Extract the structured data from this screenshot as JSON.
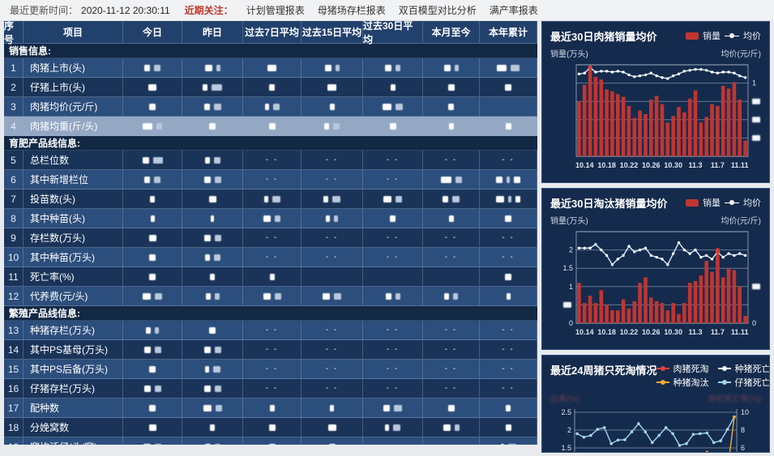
{
  "topbar": {
    "update_label": "最近更新时间：",
    "update_time": "2020-11-12 20:30:11",
    "focus_label": "近期关注：",
    "links": [
      "计划管理报表",
      "母猪场存栏报表",
      "双百模型对比分析",
      "满产率报表"
    ]
  },
  "table": {
    "headers": [
      "序号",
      "项目",
      "今日",
      "昨日",
      "过去7日平均",
      "过去15日平均",
      "过去30日平均",
      "本月至今",
      "本年累计"
    ],
    "redaction_note": "all numeric cell values are blurred/redacted in the screenshot",
    "rows": [
      {
        "section": "销售信息:"
      },
      {
        "n": 1,
        "label": "肉猪上市(头)",
        "shade": "lt",
        "cells": [
          [
            7,
            8
          ],
          [
            9,
            5
          ],
          [
            11
          ],
          [
            8,
            5
          ],
          [
            8,
            6
          ],
          [
            8,
            5
          ],
          [
            12,
            11
          ]
        ]
      },
      {
        "n": 2,
        "label": "仔猪上市(头)",
        "shade": "dk",
        "cells": [
          [
            10
          ],
          [
            6,
            13
          ],
          [
            7
          ],
          [
            11
          ],
          [
            6
          ],
          [
            8
          ],
          [
            8
          ]
        ]
      },
      {
        "n": 3,
        "label": "肉猪均价(元/斤)",
        "shade": "lt",
        "cells": [
          [
            8
          ],
          [
            7,
            9
          ],
          [
            5,
            8
          ],
          [
            6
          ],
          [
            11,
            9
          ],
          [
            7
          ],
          []
        ]
      },
      {
        "n": 4,
        "label": "肉猪均重(斤/头)",
        "shade": "sel",
        "selected": true,
        "cells": [
          [
            12,
            7
          ],
          [
            8
          ],
          [
            8
          ],
          [
            6,
            8
          ],
          [
            8
          ],
          [
            6
          ],
          [
            7
          ]
        ]
      },
      {
        "section": "育肥产品线信息:"
      },
      {
        "n": 5,
        "label": "总栏位数",
        "shade": "dk",
        "cells": [
          [
            8,
            12
          ],
          [
            6,
            8
          ],
          "-",
          "-",
          "-",
          "-",
          "-"
        ]
      },
      {
        "n": 6,
        "label": "其中新增栏位",
        "shade": "lt",
        "cells": [
          [
            7,
            8
          ],
          [
            8,
            8
          ],
          "-",
          "-",
          "-",
          [
            13,
            8
          ],
          [
            8,
            4,
            8
          ]
        ]
      },
      {
        "n": 7,
        "label": "投苗数(头)",
        "shade": "dk",
        "cells": [
          [
            6
          ],
          [
            9
          ],
          [
            5,
            10
          ],
          [
            6,
            10
          ],
          [
            10,
            8
          ],
          [
            7,
            9
          ],
          [
            10,
            4,
            6
          ]
        ]
      },
      {
        "n": 8,
        "label": "其中种苗(头)",
        "shade": "lt",
        "cells": [
          [
            5
          ],
          [
            4
          ],
          [
            9,
            7
          ],
          [
            5,
            5
          ],
          [
            7
          ],
          [
            6
          ],
          [
            8
          ]
        ]
      },
      {
        "n": 9,
        "label": "存栏数(万头)",
        "shade": "dk",
        "cells": [
          [
            9
          ],
          [
            8,
            8
          ],
          "-",
          "-",
          "-",
          "-",
          "-"
        ]
      },
      {
        "n": 10,
        "label": "其中种苗(万头)",
        "shade": "lt",
        "cells": [
          [
            8
          ],
          [
            6,
            8
          ],
          "-",
          "-",
          "-",
          "-",
          "-"
        ]
      },
      {
        "n": 11,
        "label": "死亡率(%)",
        "shade": "dk",
        "cells": [
          [
            8
          ],
          [
            6
          ],
          [
            6
          ],
          [],
          [],
          [],
          [
            8
          ]
        ]
      },
      {
        "n": 12,
        "label": "代养费(元/头)",
        "shade": "lt",
        "cells": [
          [
            10,
            9
          ],
          [
            6,
            6
          ],
          [
            9,
            8
          ],
          [
            9,
            9
          ],
          [
            7,
            6
          ],
          [
            6,
            6
          ],
          [
            5
          ]
        ]
      },
      {
        "section": "繁殖产品线信息:"
      },
      {
        "n": 13,
        "label": "种猪存栏(万头)",
        "shade": "lt",
        "cells": [
          [
            6,
            5
          ],
          [
            8
          ],
          "-",
          "-",
          "-",
          "-",
          "-"
        ]
      },
      {
        "n": 14,
        "label": "其中PS基母(万头)",
        "shade": "dk",
        "cells": [
          [
            8,
            8
          ],
          [
            8,
            8
          ],
          "-",
          "-",
          "-",
          "-",
          "-"
        ]
      },
      {
        "n": 15,
        "label": "其中PS后备(万头)",
        "shade": "lt",
        "cells": [
          [
            8
          ],
          [
            5,
            9
          ],
          "-",
          "-",
          "-",
          "-",
          "-"
        ]
      },
      {
        "n": 16,
        "label": "仔猪存栏(万头)",
        "shade": "dk",
        "cells": [
          [
            8,
            8
          ],
          [
            8,
            8
          ],
          "-",
          "-",
          "-",
          "-",
          "-"
        ]
      },
      {
        "n": 17,
        "label": "配种数",
        "shade": "lt",
        "cells": [
          [
            8
          ],
          [
            10,
            8
          ],
          [
            6
          ],
          [
            5
          ],
          [
            8,
            10
          ],
          [
            8
          ],
          [
            6
          ]
        ]
      },
      {
        "n": 18,
        "label": "分娩窝数",
        "shade": "dk",
        "cells": [
          [
            9
          ],
          [
            6
          ],
          [
            8
          ],
          [
            10
          ],
          [
            5,
            9
          ],
          [
            9,
            6
          ],
          [
            7
          ]
        ]
      },
      {
        "n": 19,
        "label": "窝均活仔(头/窝)",
        "shade": "lt",
        "cells": [
          [
            9,
            8
          ],
          [
            7,
            7
          ],
          [
            8
          ],
          [
            8
          ],
          [],
          [],
          [
            4,
            10
          ]
        ]
      }
    ]
  },
  "chart_data": [
    {
      "type": "bar",
      "title": "最近30日肉猪销量均价",
      "legend": [
        "销量",
        "均价"
      ],
      "ylabel_left": "销量(万头)",
      "ylabel_right": "均价(元/斤)",
      "ylim": [
        0,
        1
      ],
      "axis_note": "axis tick values are redacted; values below are relative heights read from pixels",
      "x_tick_labels": [
        "10.14",
        "10.18",
        "10.22",
        "10.26",
        "10.30",
        "11.3",
        "11.7",
        "11.11"
      ],
      "x_tick_index": [
        1,
        5,
        9,
        13,
        17,
        21,
        25,
        29
      ],
      "left_axis_ticks_display": [
        "",
        "",
        "",
        "",
        "",
        ""
      ],
      "right_axis_ticks_display": [
        "",
        "1",
        "#",
        "#",
        "#",
        ""
      ],
      "max_marker_index": 2,
      "series": [
        {
          "name": "销量",
          "type": "bar",
          "color": "#c13531",
          "values": [
            0.6,
            0.78,
            0.95,
            0.87,
            0.84,
            0.73,
            0.71,
            0.68,
            0.65,
            0.55,
            0.42,
            0.5,
            0.46,
            0.62,
            0.66,
            0.57,
            0.37,
            0.44,
            0.54,
            0.48,
            0.63,
            0.72,
            0.37,
            0.43,
            0.57,
            0.55,
            0.77,
            0.74,
            0.81,
            0.62,
            0.17
          ]
        },
        {
          "name": "均价",
          "type": "line",
          "color": "#d9ecf8",
          "values": [
            0.9,
            0.91,
            0.97,
            0.92,
            0.93,
            0.93,
            0.92,
            0.93,
            0.92,
            0.89,
            0.87,
            0.88,
            0.89,
            0.91,
            0.88,
            0.86,
            0.85,
            0.88,
            0.9,
            0.93,
            0.94,
            0.95,
            0.95,
            0.94,
            0.92,
            0.91,
            0.92,
            0.92,
            0.91,
            0.88,
            0.86
          ]
        }
      ]
    },
    {
      "type": "bar",
      "title": "最近30日淘汰猪销量均价",
      "legend": [
        "销量",
        "均价"
      ],
      "ylabel_left": "销量(万头)",
      "ylabel_right": "均价(元/斤)",
      "ylim": [
        0,
        2.5
      ],
      "x_tick_labels": [
        "10.14",
        "10.18",
        "10.22",
        "10.26",
        "10.30",
        "11.3",
        "11.7",
        "11.11"
      ],
      "x_tick_index": [
        1,
        5,
        9,
        13,
        17,
        21,
        25,
        29
      ],
      "left_axis_ticks_display": [
        "",
        "2",
        "1.5",
        "1",
        "#",
        "0"
      ],
      "right_axis_ticks_display": [
        "",
        "",
        "",
        "#",
        "",
        "0"
      ],
      "max_marker_index": 25,
      "series": [
        {
          "name": "销量",
          "type": "bar",
          "color": "#c13531",
          "values": [
            1.1,
            0.55,
            0.75,
            0.55,
            0.9,
            0.5,
            0.35,
            0.35,
            0.65,
            0.4,
            0.6,
            1.1,
            1.25,
            0.7,
            0.6,
            0.55,
            0.35,
            0.55,
            0.25,
            0.55,
            1.1,
            1.15,
            1.3,
            1.7,
            1.4,
            2.05,
            1.25,
            1.5,
            1.45,
            1.0,
            0.2
          ]
        },
        {
          "name": "均价",
          "type": "line",
          "color": "#d9ecf8",
          "values": [
            2.05,
            2.05,
            2.05,
            2.15,
            2.0,
            1.85,
            1.6,
            1.75,
            1.85,
            2.1,
            1.95,
            2.0,
            2.05,
            1.85,
            1.8,
            1.75,
            1.6,
            1.9,
            2.2,
            2.0,
            1.9,
            2.0,
            1.8,
            1.85,
            1.75,
            1.95,
            1.8,
            1.9,
            1.85,
            1.9,
            1.85
          ]
        }
      ]
    },
    {
      "type": "line",
      "title": "最近24周猪只死淘情况",
      "legend": [
        "肉猪死淘",
        "种猪死亡",
        "种猪淘汰",
        "仔猪死亡"
      ],
      "ylabel_left": "比率(%)",
      "ylabel_right": "存栏死亡率(%)",
      "ylabel_note": "axis unit labels appear blurred/dimmed in screenshot",
      "left_axis_ticks": [
        "2.5",
        "2",
        "1.5"
      ],
      "right_axis_ticks": [
        "10",
        "8",
        "6"
      ],
      "clip_note": "chart is cut off by the bottom edge of the screen; only upper part visible",
      "series": [
        {
          "name": "肉猪死淘",
          "color": "#e0433a",
          "values": []
        },
        {
          "name": "种猪死亡",
          "color": "#ffffff",
          "values": []
        },
        {
          "name": "种猪淘汰",
          "color": "#f2a93b",
          "values": [
            null,
            null,
            null,
            null,
            null,
            null,
            null,
            null,
            null,
            null,
            null,
            null,
            null,
            null,
            null,
            null,
            null,
            null,
            null,
            1.38,
            null,
            null,
            0.85,
            2.37
          ]
        },
        {
          "name": "仔猪死亡",
          "color": "#a3d5ee",
          "values": [
            1.9,
            1.8,
            1.85,
            2.02,
            2.07,
            1.62,
            1.72,
            1.73,
            1.95,
            2.18,
            1.95,
            1.65,
            1.85,
            2.07,
            1.9,
            1.57,
            1.62,
            1.88,
            1.9,
            1.92,
            1.65,
            1.7,
            2.02,
            2.37
          ]
        }
      ]
    }
  ]
}
